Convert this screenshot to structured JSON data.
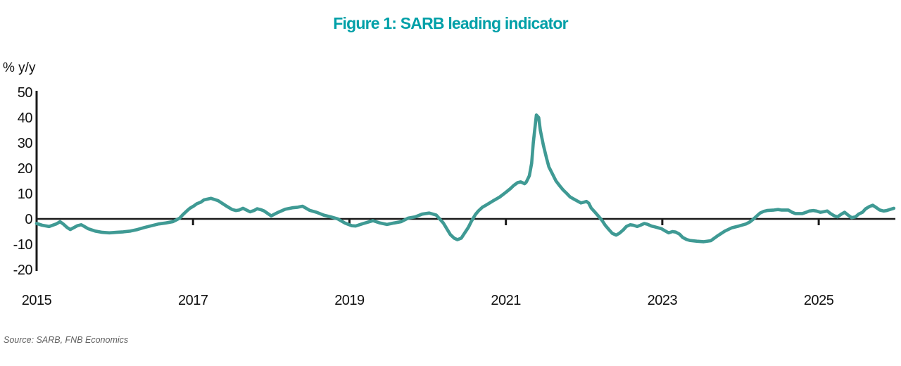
{
  "page": {
    "background": "#FFFFFF"
  },
  "source_note": "Source: SARB, FNB Economics",
  "colors": {
    "title_accent": "#00A0A8",
    "line": "#3F9A94",
    "axis": "#1A1A1A",
    "tick_label": "#111111",
    "source_text": "#5F5F5F"
  },
  "chart_data": {
    "type": "line",
    "title": "Figure 1: SARB leading indicator",
    "ylabel": "% y/y",
    "xlabel": "",
    "x_ticks": [
      2015,
      2017,
      2019,
      2021,
      2023,
      2025
    ],
    "y_ticks": [
      50,
      40,
      30,
      20,
      10,
      0,
      -10,
      -20
    ],
    "xlim": [
      2015,
      2025.98
    ],
    "ylim": [
      -20,
      50
    ],
    "grid": false,
    "legend": "none",
    "series": [
      {
        "name": "SARB leading indicator (% y/y)",
        "color": "#3F9A94",
        "points": [
          [
            2015.0,
            -1.8
          ],
          [
            2015.07,
            -2.5
          ],
          [
            2015.16,
            -3.0
          ],
          [
            2015.25,
            -2.0
          ],
          [
            2015.3,
            -1.1
          ],
          [
            2015.34,
            -2.0
          ],
          [
            2015.39,
            -3.4
          ],
          [
            2015.43,
            -4.2
          ],
          [
            2015.48,
            -3.4
          ],
          [
            2015.52,
            -2.7
          ],
          [
            2015.57,
            -2.3
          ],
          [
            2015.61,
            -3.0
          ],
          [
            2015.66,
            -3.9
          ],
          [
            2015.75,
            -4.8
          ],
          [
            2015.84,
            -5.3
          ],
          [
            2015.93,
            -5.5
          ],
          [
            2016.02,
            -5.3
          ],
          [
            2016.11,
            -5.1
          ],
          [
            2016.2,
            -4.8
          ],
          [
            2016.29,
            -4.2
          ],
          [
            2016.38,
            -3.4
          ],
          [
            2016.47,
            -2.7
          ],
          [
            2016.56,
            -2.0
          ],
          [
            2016.65,
            -1.6
          ],
          [
            2016.74,
            -1.1
          ],
          [
            2016.78,
            -0.5
          ],
          [
            2016.83,
            0.3
          ],
          [
            2016.87,
            1.7
          ],
          [
            2016.92,
            3.1
          ],
          [
            2016.96,
            4.2
          ],
          [
            2017.01,
            5.1
          ],
          [
            2017.05,
            6.0
          ],
          [
            2017.1,
            6.6
          ],
          [
            2017.14,
            7.5
          ],
          [
            2017.23,
            8.1
          ],
          [
            2017.32,
            7.2
          ],
          [
            2017.41,
            5.4
          ],
          [
            2017.5,
            3.7
          ],
          [
            2017.55,
            3.3
          ],
          [
            2017.59,
            3.5
          ],
          [
            2017.64,
            4.2
          ],
          [
            2017.69,
            3.4
          ],
          [
            2017.73,
            2.8
          ],
          [
            2017.78,
            3.3
          ],
          [
            2017.82,
            4.0
          ],
          [
            2017.87,
            3.6
          ],
          [
            2017.91,
            3.1
          ],
          [
            2018.0,
            1.2
          ],
          [
            2018.09,
            2.6
          ],
          [
            2018.18,
            3.8
          ],
          [
            2018.27,
            4.4
          ],
          [
            2018.34,
            4.6
          ],
          [
            2018.4,
            5.0
          ],
          [
            2018.49,
            3.4
          ],
          [
            2018.58,
            2.6
          ],
          [
            2018.67,
            1.5
          ],
          [
            2018.76,
            0.8
          ],
          [
            2018.85,
            0.0
          ],
          [
            2018.94,
            -1.6
          ],
          [
            2019.03,
            -2.7
          ],
          [
            2019.08,
            -2.8
          ],
          [
            2019.17,
            -1.9
          ],
          [
            2019.3,
            -0.7
          ],
          [
            2019.39,
            -1.6
          ],
          [
            2019.48,
            -2.2
          ],
          [
            2019.57,
            -1.6
          ],
          [
            2019.66,
            -1.1
          ],
          [
            2019.75,
            0.3
          ],
          [
            2019.84,
            0.8
          ],
          [
            2019.93,
            1.9
          ],
          [
            2020.02,
            2.3
          ],
          [
            2020.11,
            1.5
          ],
          [
            2020.2,
            -1.6
          ],
          [
            2020.29,
            -6.2
          ],
          [
            2020.34,
            -7.6
          ],
          [
            2020.38,
            -8.2
          ],
          [
            2020.43,
            -7.6
          ],
          [
            2020.47,
            -5.7
          ],
          [
            2020.52,
            -3.4
          ],
          [
            2020.56,
            -0.9
          ],
          [
            2020.61,
            1.7
          ],
          [
            2020.65,
            3.2
          ],
          [
            2020.7,
            4.6
          ],
          [
            2020.74,
            5.3
          ],
          [
            2020.83,
            7.0
          ],
          [
            2020.92,
            8.6
          ],
          [
            2021.0,
            10.5
          ],
          [
            2021.06,
            12.0
          ],
          [
            2021.1,
            13.2
          ],
          [
            2021.15,
            14.3
          ],
          [
            2021.19,
            14.6
          ],
          [
            2021.24,
            13.9
          ],
          [
            2021.26,
            14.5
          ],
          [
            2021.3,
            17.0
          ],
          [
            2021.33,
            22.0
          ],
          [
            2021.35,
            30.0
          ],
          [
            2021.39,
            41.0
          ],
          [
            2021.42,
            40.0
          ],
          [
            2021.44,
            35.0
          ],
          [
            2021.48,
            29.0
          ],
          [
            2021.52,
            24.0
          ],
          [
            2021.55,
            20.5
          ],
          [
            2021.6,
            17.5
          ],
          [
            2021.64,
            15.0
          ],
          [
            2021.69,
            13.0
          ],
          [
            2021.73,
            11.5
          ],
          [
            2021.78,
            10.0
          ],
          [
            2021.82,
            8.7
          ],
          [
            2021.87,
            7.8
          ],
          [
            2021.91,
            7.1
          ],
          [
            2021.96,
            6.3
          ],
          [
            2022.0,
            6.6
          ],
          [
            2022.03,
            6.9
          ],
          [
            2022.06,
            6.2
          ],
          [
            2022.09,
            4.3
          ],
          [
            2022.14,
            2.6
          ],
          [
            2022.18,
            1.2
          ],
          [
            2022.23,
            -0.6
          ],
          [
            2022.27,
            -2.5
          ],
          [
            2022.32,
            -4.3
          ],
          [
            2022.36,
            -5.7
          ],
          [
            2022.41,
            -6.4
          ],
          [
            2022.45,
            -5.7
          ],
          [
            2022.5,
            -4.4
          ],
          [
            2022.54,
            -3.0
          ],
          [
            2022.59,
            -2.3
          ],
          [
            2022.63,
            -2.5
          ],
          [
            2022.68,
            -3.0
          ],
          [
            2022.72,
            -2.5
          ],
          [
            2022.77,
            -1.8
          ],
          [
            2022.81,
            -2.1
          ],
          [
            2022.86,
            -2.8
          ],
          [
            2022.9,
            -3.1
          ],
          [
            2022.99,
            -3.9
          ],
          [
            2023.04,
            -4.8
          ],
          [
            2023.08,
            -5.5
          ],
          [
            2023.13,
            -5.0
          ],
          [
            2023.17,
            -5.2
          ],
          [
            2023.22,
            -6.0
          ],
          [
            2023.26,
            -7.3
          ],
          [
            2023.31,
            -8.1
          ],
          [
            2023.35,
            -8.5
          ],
          [
            2023.44,
            -8.8
          ],
          [
            2023.53,
            -9.0
          ],
          [
            2023.62,
            -8.6
          ],
          [
            2023.71,
            -6.6
          ],
          [
            2023.8,
            -4.8
          ],
          [
            2023.89,
            -3.5
          ],
          [
            2023.98,
            -2.8
          ],
          [
            2024.07,
            -2.0
          ],
          [
            2024.12,
            -1.2
          ],
          [
            2024.16,
            -0.2
          ],
          [
            2024.21,
            1.2
          ],
          [
            2024.25,
            2.3
          ],
          [
            2024.3,
            3.0
          ],
          [
            2024.34,
            3.3
          ],
          [
            2024.43,
            3.5
          ],
          [
            2024.48,
            3.7
          ],
          [
            2024.52,
            3.5
          ],
          [
            2024.61,
            3.5
          ],
          [
            2024.66,
            2.6
          ],
          [
            2024.7,
            2.1
          ],
          [
            2024.79,
            2.1
          ],
          [
            2024.84,
            2.6
          ],
          [
            2024.88,
            3.1
          ],
          [
            2024.93,
            3.3
          ],
          [
            2024.97,
            3.1
          ],
          [
            2025.02,
            2.6
          ],
          [
            2025.06,
            2.8
          ],
          [
            2025.11,
            3.1
          ],
          [
            2025.15,
            2.1
          ],
          [
            2025.2,
            1.2
          ],
          [
            2025.24,
            0.8
          ],
          [
            2025.29,
            1.9
          ],
          [
            2025.33,
            2.6
          ],
          [
            2025.38,
            1.4
          ],
          [
            2025.42,
            0.5
          ],
          [
            2025.47,
            0.8
          ],
          [
            2025.51,
            1.9
          ],
          [
            2025.56,
            2.6
          ],
          [
            2025.6,
            4.0
          ],
          [
            2025.65,
            4.9
          ],
          [
            2025.69,
            5.4
          ],
          [
            2025.74,
            4.4
          ],
          [
            2025.78,
            3.5
          ],
          [
            2025.83,
            3.1
          ],
          [
            2025.87,
            3.3
          ],
          [
            2025.92,
            3.8
          ],
          [
            2025.96,
            4.2
          ]
        ]
      }
    ]
  }
}
